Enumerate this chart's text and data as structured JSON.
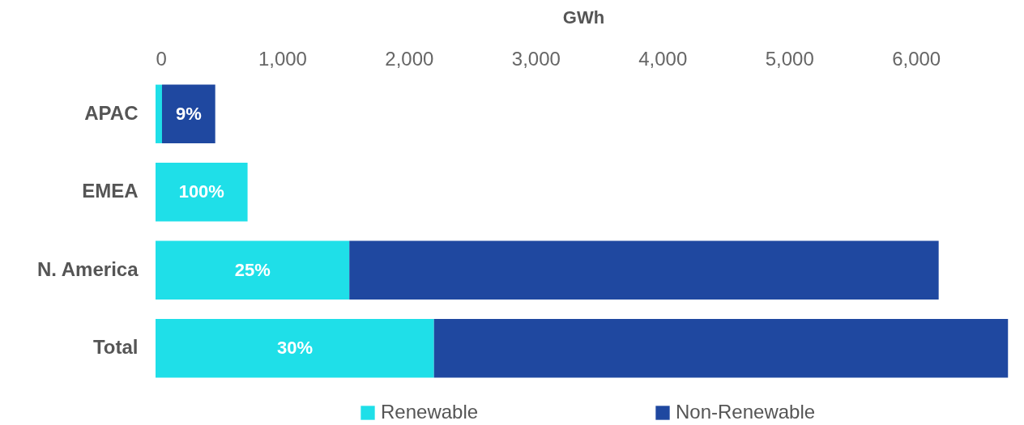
{
  "chart_data": {
    "type": "bar",
    "orientation": "horizontal",
    "stacked": true,
    "xlabel": "GWh",
    "categories": [
      "APAC",
      "EMEA",
      "N. America",
      "Total"
    ],
    "series": [
      {
        "name": "Renewable",
        "color": "#1fdfe8",
        "values": [
          51,
          726,
          1529,
          2197
        ]
      },
      {
        "name": "Non-Renewable",
        "color": "#1f48a0",
        "values": [
          420,
          null,
          4650,
          4529
        ]
      }
    ],
    "annotations": [
      {
        "text": "9%",
        "x": 261,
        "y": "APAC"
      },
      {
        "text": "100%",
        "x": 363,
        "y": "EMEA"
      },
      {
        "text": "25%",
        "x": 765,
        "y": "N. America"
      },
      {
        "text": "30%",
        "x": 1099,
        "y": "Total"
      }
    ],
    "xlim": [
      0,
      6750
    ],
    "xticks": [
      {
        "value": 0,
        "label": "0"
      },
      {
        "value": 1000,
        "label": "1,000"
      },
      {
        "value": 2000,
        "label": "2,000"
      },
      {
        "value": 3000,
        "label": "3,000"
      },
      {
        "value": 4000,
        "label": "4,000"
      },
      {
        "value": 5000,
        "label": "5,000"
      },
      {
        "value": 6000,
        "label": "6,000"
      }
    ],
    "grid": false,
    "legend": "bottom"
  }
}
